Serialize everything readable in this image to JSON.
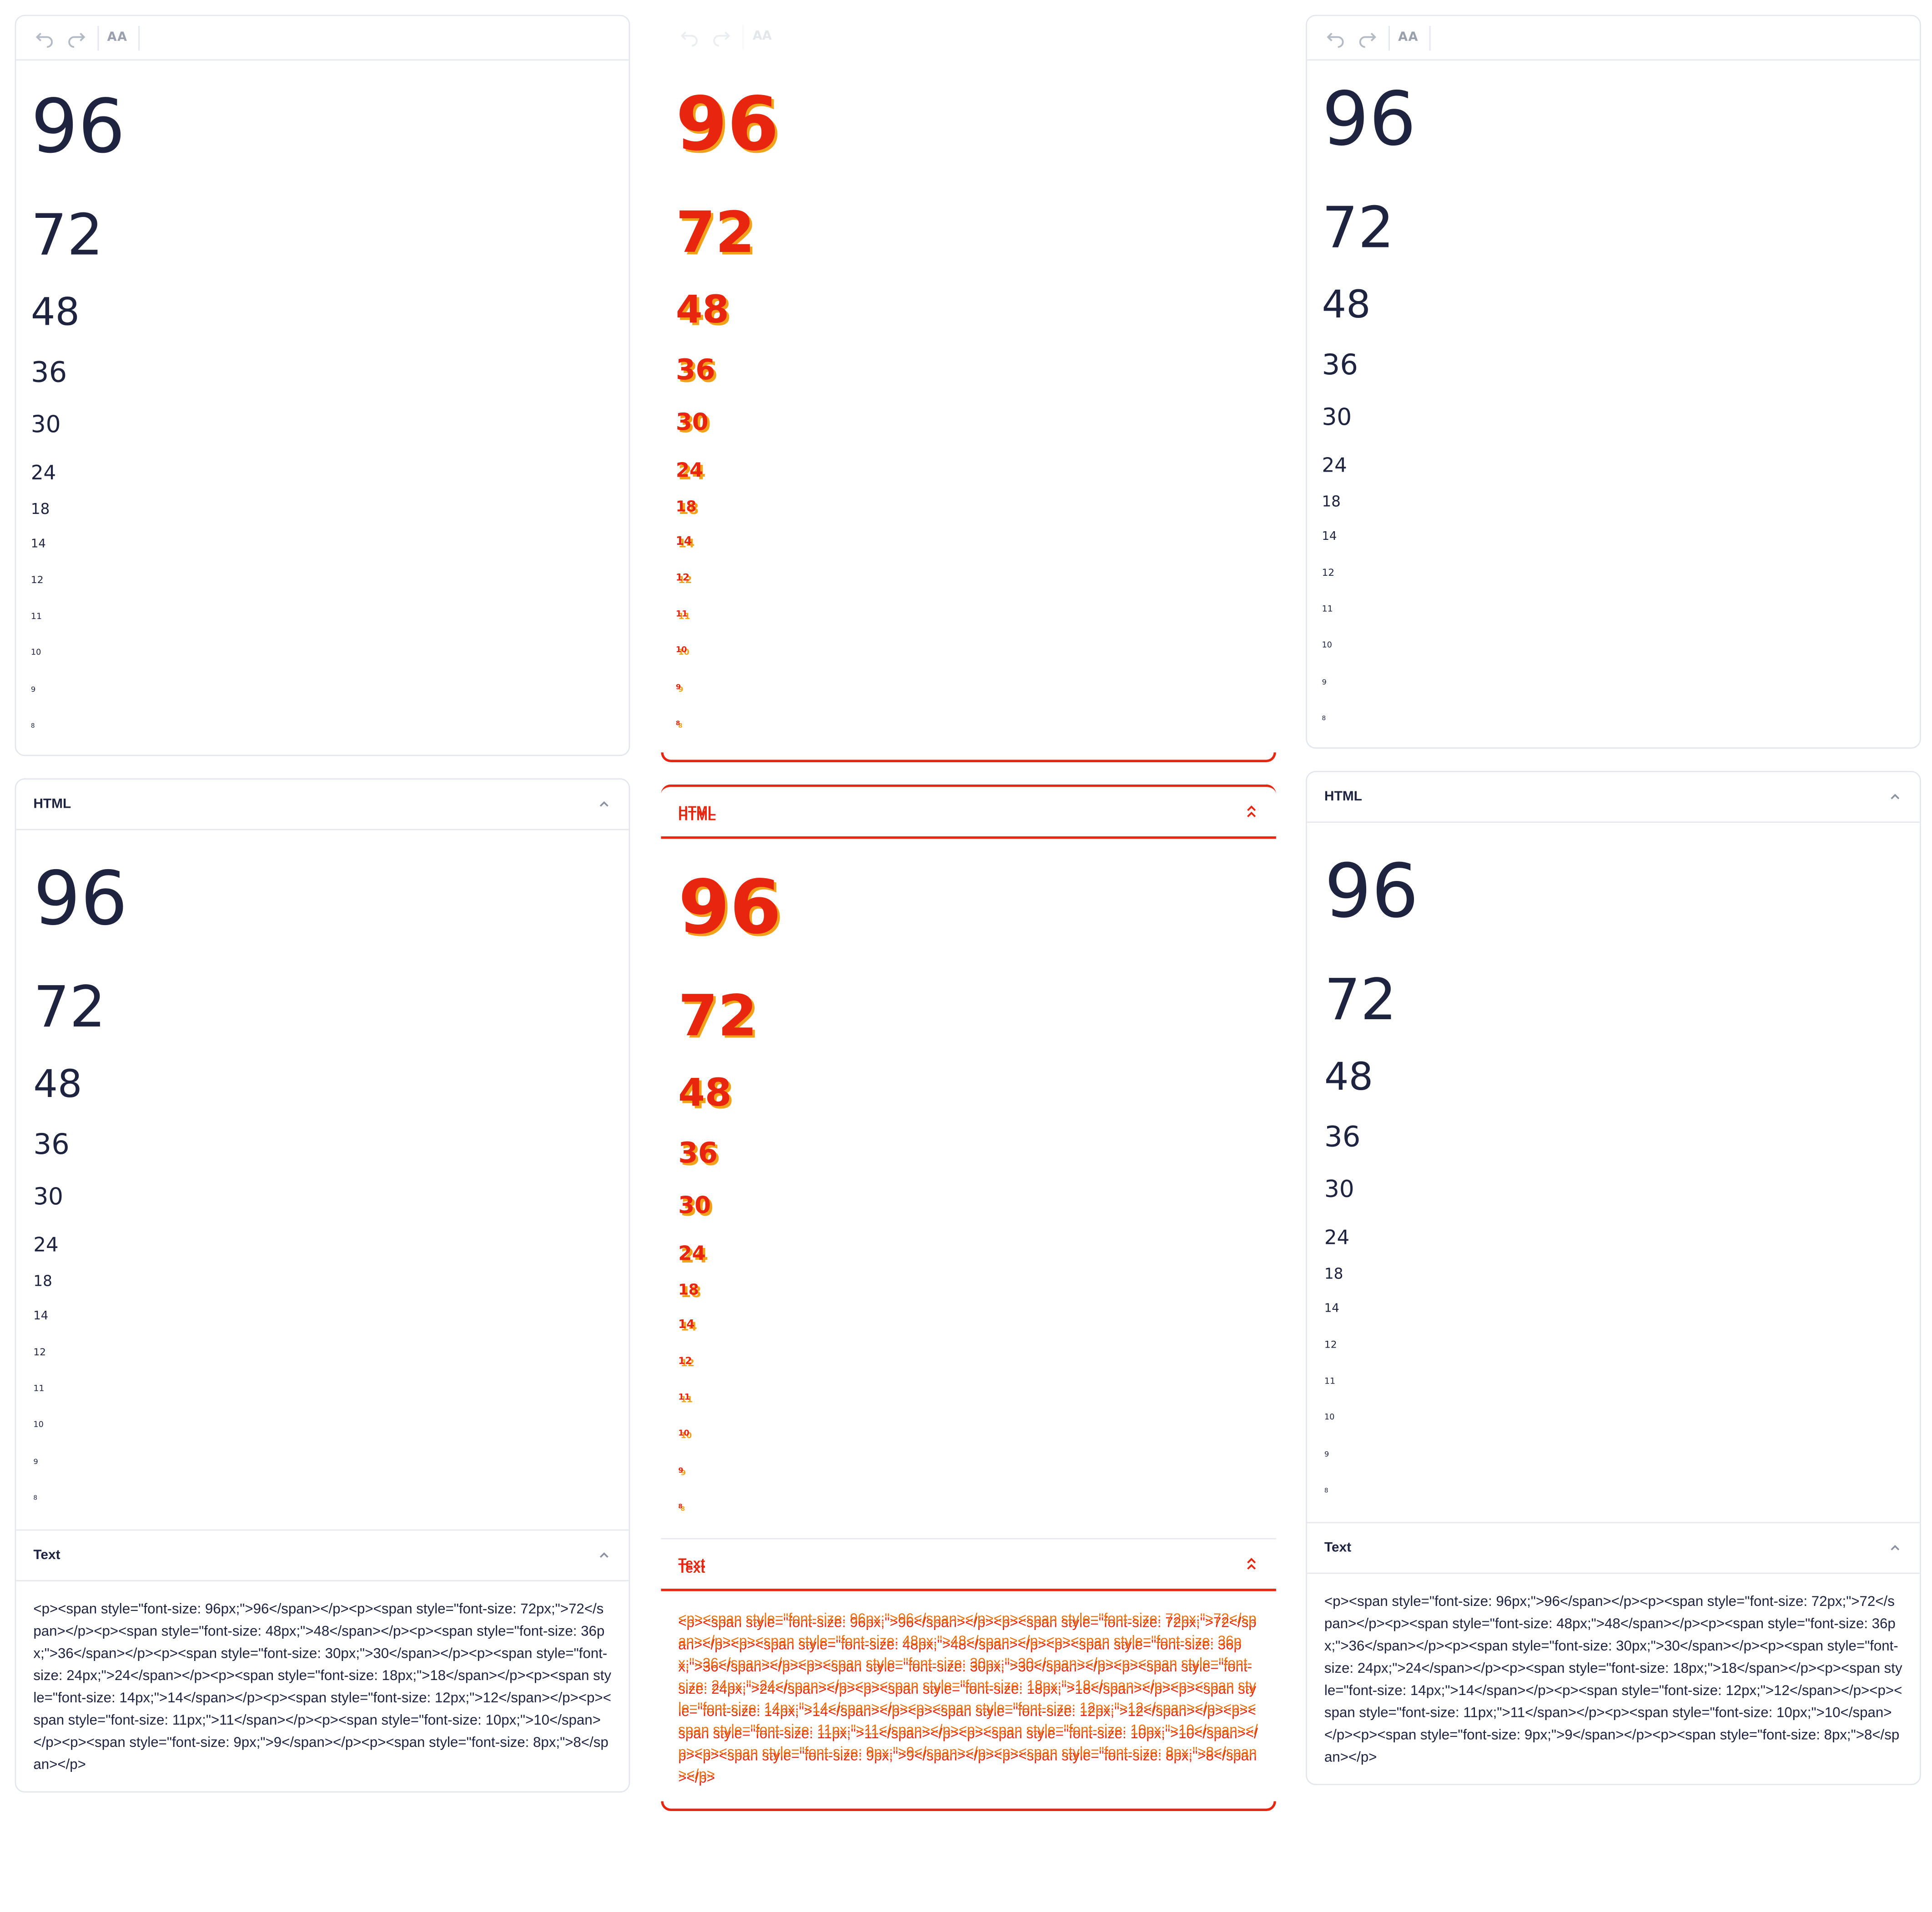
{
  "toolbar": {
    "undo_icon": "undo-icon",
    "redo_icon": "redo-icon",
    "font_size_label": "AA"
  },
  "editor_sizes": [
    "96",
    "72",
    "48",
    "36",
    "30",
    "24",
    "18",
    "14",
    "12",
    "11",
    "10",
    "9",
    "8"
  ],
  "html_section": {
    "title": "HTML",
    "toggle_icon": "chevron-up-icon"
  },
  "text_section": {
    "title": "Text",
    "toggle_icon": "chevron-up-icon",
    "code": "<p><span style=\"font-size: 96px;\">96</span></p><p><span style=\"font-size: 72px;\">72</span></p><p><span style=\"font-size: 48px;\">48</span></p><p><span style=\"font-size: 36px;\">36</span></p><p><span style=\"font-size: 30px;\">30</span></p><p><span style=\"font-size: 24px;\">24</span></p><p><span style=\"font-size: 18px;\">18</span></p><p><span style=\"font-size: 14px;\">14</span></p><p><span style=\"font-size: 12px;\">12</span></p><p><span style=\"font-size: 11px;\">11</span></p><p><span style=\"font-size: 10px;\">10</span></p><p><span style=\"font-size: 9px;\">9</span></p><p><span style=\"font-size: 8px;\">8</span></p>"
  },
  "colors": {
    "text": "#1e2340",
    "border": "#e3e6ec",
    "diff_red": "#e8250f",
    "diff_orange": "#f0a21a"
  }
}
